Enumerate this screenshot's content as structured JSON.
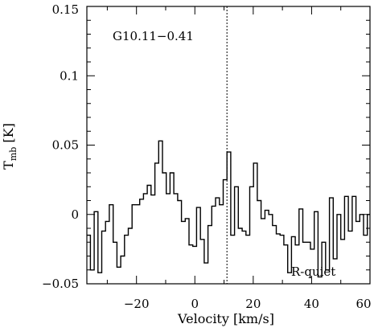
{
  "chart_data": {
    "type": "line",
    "style": "step",
    "title": "",
    "xlabel": "Velocity [km/s]",
    "ylabel_main": "T",
    "ylabel_sub": "mb",
    "ylabel_unit": " [K]",
    "xlim": [
      -37,
      60
    ],
    "ylim": [
      -0.05,
      0.15
    ],
    "x_ticks": [
      -20,
      0,
      20,
      40,
      60
    ],
    "x_tick_labels": [
      "−20",
      "0",
      "20",
      "40",
      "60"
    ],
    "y_ticks": [
      -0.05,
      0,
      0.05,
      0.1,
      0.15
    ],
    "y_tick_labels": [
      "−0.05",
      "0",
      "0.05",
      "0.1",
      "0.15"
    ],
    "grid": false,
    "annotations": {
      "source": "G10.11−0.41",
      "status": "R-quiet"
    },
    "vline_x": 11,
    "line_color": "#000000",
    "series": [
      {
        "x": [
          -37,
          -35.8,
          -34.5,
          -33.2,
          -31.9,
          -30.6,
          -29.3,
          -28,
          -26.7,
          -25.4,
          -24.1,
          -22.8,
          -21.5,
          -20.2,
          -18.9,
          -17.6,
          -16.3,
          -15,
          -13.7,
          -12.4,
          -11.1,
          -9.8,
          -8.5,
          -7.2,
          -5.9,
          -4.6,
          -3.3,
          -2,
          -0.7,
          0.6,
          1.9,
          3.2,
          4.5,
          5.8,
          7.1,
          8.4,
          9.7,
          11,
          12.3,
          13.6,
          14.9,
          16.2,
          17.5,
          18.8,
          20.1,
          21.4,
          22.7,
          24,
          25.3,
          26.6,
          27.9,
          29.2,
          30.5,
          31.8,
          33.1,
          34.4,
          35.7,
          37,
          38.3,
          39.6,
          40.9,
          42.2,
          43.5,
          44.8,
          46.1,
          47.4,
          48.7,
          50,
          51.3,
          52.6,
          53.9,
          55.2,
          56.5,
          57.8,
          59.1
        ],
        "y": [
          -0.015,
          -0.04,
          0.002,
          -0.042,
          -0.012,
          -0.005,
          0.007,
          -0.02,
          -0.038,
          -0.03,
          -0.015,
          -0.01,
          0.007,
          0.007,
          0.011,
          0.015,
          0.021,
          0.014,
          0.037,
          0.053,
          0.03,
          0.015,
          0.03,
          0.015,
          0.01,
          -0.005,
          -0.003,
          -0.022,
          -0.023,
          0.005,
          -0.018,
          -0.035,
          -0.008,
          0.006,
          0.012,
          0.007,
          0.025,
          0.045,
          -0.015,
          0.02,
          -0.01,
          -0.012,
          -0.015,
          0.02,
          0.037,
          0.01,
          -0.003,
          0.003,
          0.0,
          -0.008,
          -0.014,
          -0.015,
          -0.022,
          -0.042,
          -0.016,
          -0.022,
          0.004,
          -0.02,
          -0.02,
          -0.025,
          0.002,
          -0.045,
          -0.02,
          -0.04,
          0.012,
          -0.032,
          0.0,
          -0.018,
          0.013,
          -0.012,
          0.013,
          -0.005,
          0.0,
          -0.015,
          0.0
        ]
      }
    ]
  }
}
